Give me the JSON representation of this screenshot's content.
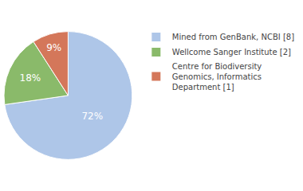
{
  "chart_data": {
    "type": "pie",
    "categories": [
      "Mined from GenBank, NCBI [8]",
      "Wellcome Sanger Institute [2]",
      "Centre for Biodiversity\nGenomics, Informatics\nDepartment [1]"
    ],
    "values": [
      72,
      18,
      9
    ],
    "value_labels": [
      "72%",
      "18%",
      "9%"
    ],
    "colors": [
      "#aec6e8",
      "#8aba6a",
      "#d4775a"
    ],
    "data_labels": true,
    "legend": "right"
  }
}
